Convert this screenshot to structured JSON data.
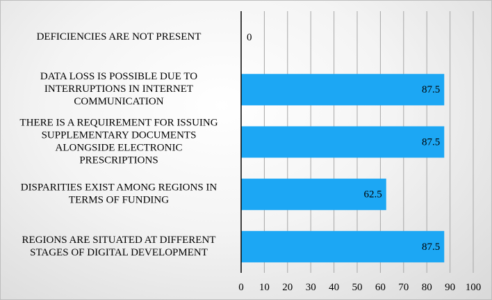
{
  "chart_data": {
    "type": "bar",
    "orientation": "horizontal",
    "categories": [
      "DEFICIENCIES ARE NOT PRESENT",
      "DATA LOSS IS POSSIBLE DUE TO INTERRUPTIONS IN INTERNET COMMUNICATION",
      "THERE IS A REQUIREMENT FOR ISSUING SUPPLEMENTARY DOCUMENTS ALONGSIDE ELECTRONIC PRESCRIPTIONS",
      "DISPARITIES EXIST AMONG REGIONS IN TERMS OF FUNDING",
      "REGIONS ARE SITUATED AT DIFFERENT STAGES OF DIGITAL DEVELOPMENT"
    ],
    "category_lines": [
      [
        "DEFICIENCIES ARE NOT PRESENT"
      ],
      [
        "DATA LOSS IS POSSIBLE DUE TO",
        "INTERRUPTIONS IN INTERNET",
        "COMMUNICATION"
      ],
      [
        "THERE IS A REQUIREMENT FOR ISSUING",
        "SUPPLEMENTARY DOCUMENTS",
        "ALONGSIDE ELECTRONIC",
        "PRESCRIPTIONS"
      ],
      [
        "DISPARITIES EXIST AMONG REGIONS IN",
        "TERMS OF FUNDING"
      ],
      [
        "REGIONS ARE SITUATED AT DIFFERENT",
        "STAGES OF DIGITAL DEVELOPMENT"
      ]
    ],
    "values": [
      0,
      87.5,
      87.5,
      62.5,
      87.5
    ],
    "data_labels": [
      "0",
      "87.5",
      "87.5",
      "62.5",
      "87.5"
    ],
    "xlim": [
      0,
      100
    ],
    "x_ticks": [
      "0",
      "10",
      "20",
      "30",
      "40",
      "50",
      "60",
      "70",
      "80",
      "90",
      "100"
    ],
    "grid": "vertical",
    "bar_color": "#1ca7f4",
    "grid_color": "#a6a6a6",
    "axis_color": "#000000",
    "title": "",
    "xlabel": "",
    "ylabel": ""
  }
}
